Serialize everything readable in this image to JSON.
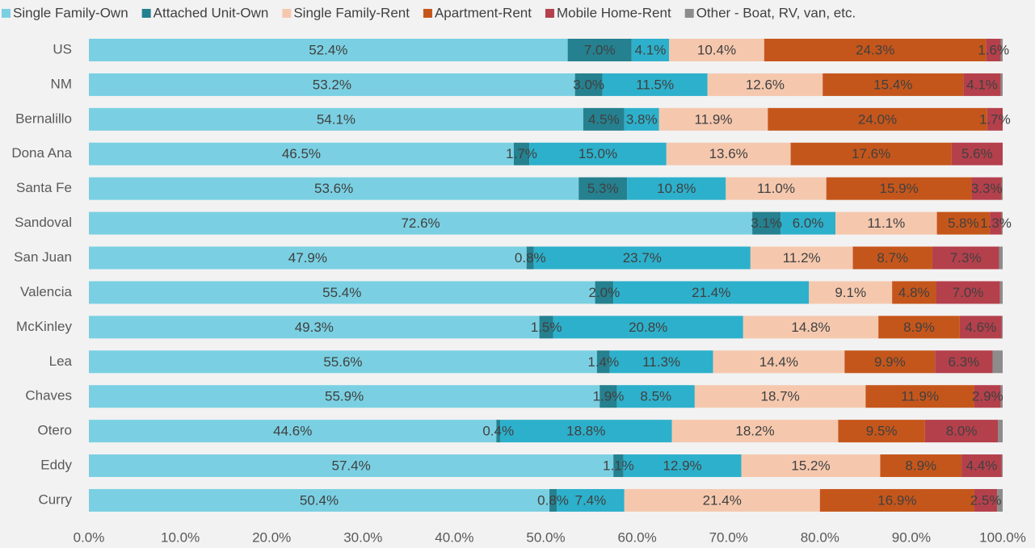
{
  "chart_data": {
    "type": "stacked-bar-horizontal",
    "categories": [
      "US",
      "NM",
      "Bernalillo",
      "Dona Ana",
      "Santa Fe",
      "Sandoval",
      "San Juan",
      "Valencia",
      "McKinley",
      "Lea",
      "Chaves",
      "Otero",
      "Eddy",
      "Curry"
    ],
    "series": [
      {
        "name": "Single Family-Own",
        "color": "#7ad0e2",
        "values": [
          52.4,
          53.2,
          54.1,
          46.5,
          53.6,
          72.6,
          47.9,
          55.4,
          49.3,
          55.6,
          55.9,
          44.6,
          57.4,
          50.4
        ],
        "value_labels": [
          "52.4%",
          "53.2%",
          "54.1%",
          "46.5%",
          "53.6%",
          "72.6%",
          "47.9%",
          "55.4%",
          "49.3%",
          "55.6%",
          "55.9%",
          "44.6%",
          "57.4%",
          "50.4%"
        ]
      },
      {
        "name": "Attached Unit-Own",
        "color": "#25808f",
        "values": [
          7.0,
          3.0,
          4.5,
          1.7,
          5.3,
          3.1,
          0.8,
          2.0,
          1.5,
          1.4,
          1.9,
          0.4,
          1.1,
          0.8
        ],
        "value_labels": [
          "7.0%",
          "3.0%",
          "4.5%",
          "1.7%",
          "5.3%",
          "3.1%",
          "0.8%",
          "2.0%",
          "1.5%",
          "1.4%",
          "1.9%",
          "0.4%",
          "1.1%",
          "0.8%"
        ]
      },
      {
        "name": null,
        "color": "#2db0cb",
        "values": [
          4.1,
          11.5,
          3.8,
          15.0,
          10.8,
          6.0,
          23.7,
          21.4,
          20.8,
          11.3,
          8.5,
          18.8,
          12.9,
          7.4
        ],
        "value_labels": [
          "4.1%",
          "11.5%",
          "3.8%",
          "15.0%",
          "10.8%",
          "6.0%",
          "23.7%",
          "21.4%",
          "20.8%",
          "11.3%",
          "8.5%",
          "18.8%",
          "12.9%",
          "7.4%"
        ]
      },
      {
        "name": "Single Family-Rent",
        "color": "#f5c8ae",
        "values": [
          10.4,
          12.6,
          11.9,
          13.6,
          11.0,
          11.1,
          11.2,
          9.1,
          14.8,
          14.4,
          18.7,
          18.2,
          15.2,
          21.4
        ],
        "value_labels": [
          "10.4%",
          "12.6%",
          "11.9%",
          "13.6%",
          "11.0%",
          "11.1%",
          "11.2%",
          "9.1%",
          "14.8%",
          "14.4%",
          "18.7%",
          "18.2%",
          "15.2%",
          "21.4%"
        ]
      },
      {
        "name": "Apartment-Rent",
        "color": "#c5561b",
        "values": [
          24.3,
          15.4,
          24.0,
          17.6,
          15.9,
          5.8,
          8.7,
          4.8,
          8.9,
          9.9,
          11.9,
          9.5,
          8.9,
          16.9
        ],
        "value_labels": [
          "24.3%",
          "15.4%",
          "24.0%",
          "17.6%",
          "15.9%",
          "5.8%",
          "8.7%",
          "4.8%",
          "8.9%",
          "9.9%",
          "11.9%",
          "9.5%",
          "8.9%",
          "16.9%"
        ]
      },
      {
        "name": "Mobile Home-Rent",
        "color": "#b4404c",
        "values": [
          1.6,
          4.1,
          1.7,
          5.6,
          3.3,
          1.3,
          7.3,
          7.0,
          4.6,
          6.3,
          2.9,
          8.0,
          4.4,
          2.5
        ],
        "value_labels": [
          "1.6%",
          "4.1%",
          "1.7%",
          "5.6%",
          "3.3%",
          "1.3%",
          "7.3%",
          "7.0%",
          "4.6%",
          "6.3%",
          "2.9%",
          "8.0%",
          "4.4%",
          "2.5%"
        ]
      },
      {
        "name": "Other - Boat, RV, van, etc.",
        "color": "#8c8c8c",
        "values": [
          0.2,
          0.2,
          0,
          0,
          0.1,
          0.1,
          0.4,
          0.3,
          0.1,
          1.1,
          0.2,
          0.5,
          0.1,
          0.6
        ]
      }
    ],
    "xlim": [
      0,
      100
    ],
    "xticks": [
      {
        "value": 0,
        "label": "0.0%"
      },
      {
        "value": 10,
        "label": "10.0%"
      },
      {
        "value": 20,
        "label": "20.0%"
      },
      {
        "value": 30,
        "label": "30.0%"
      },
      {
        "value": 40,
        "label": "40.0%"
      },
      {
        "value": 50,
        "label": "50.0%"
      },
      {
        "value": 60,
        "label": "60.0%"
      },
      {
        "value": 70,
        "label": "70.0%"
      },
      {
        "value": 80,
        "label": "80.0%"
      },
      {
        "value": 90,
        "label": "90.0%"
      },
      {
        "value": 100,
        "label": "100.0%"
      }
    ],
    "legend": "top"
  }
}
